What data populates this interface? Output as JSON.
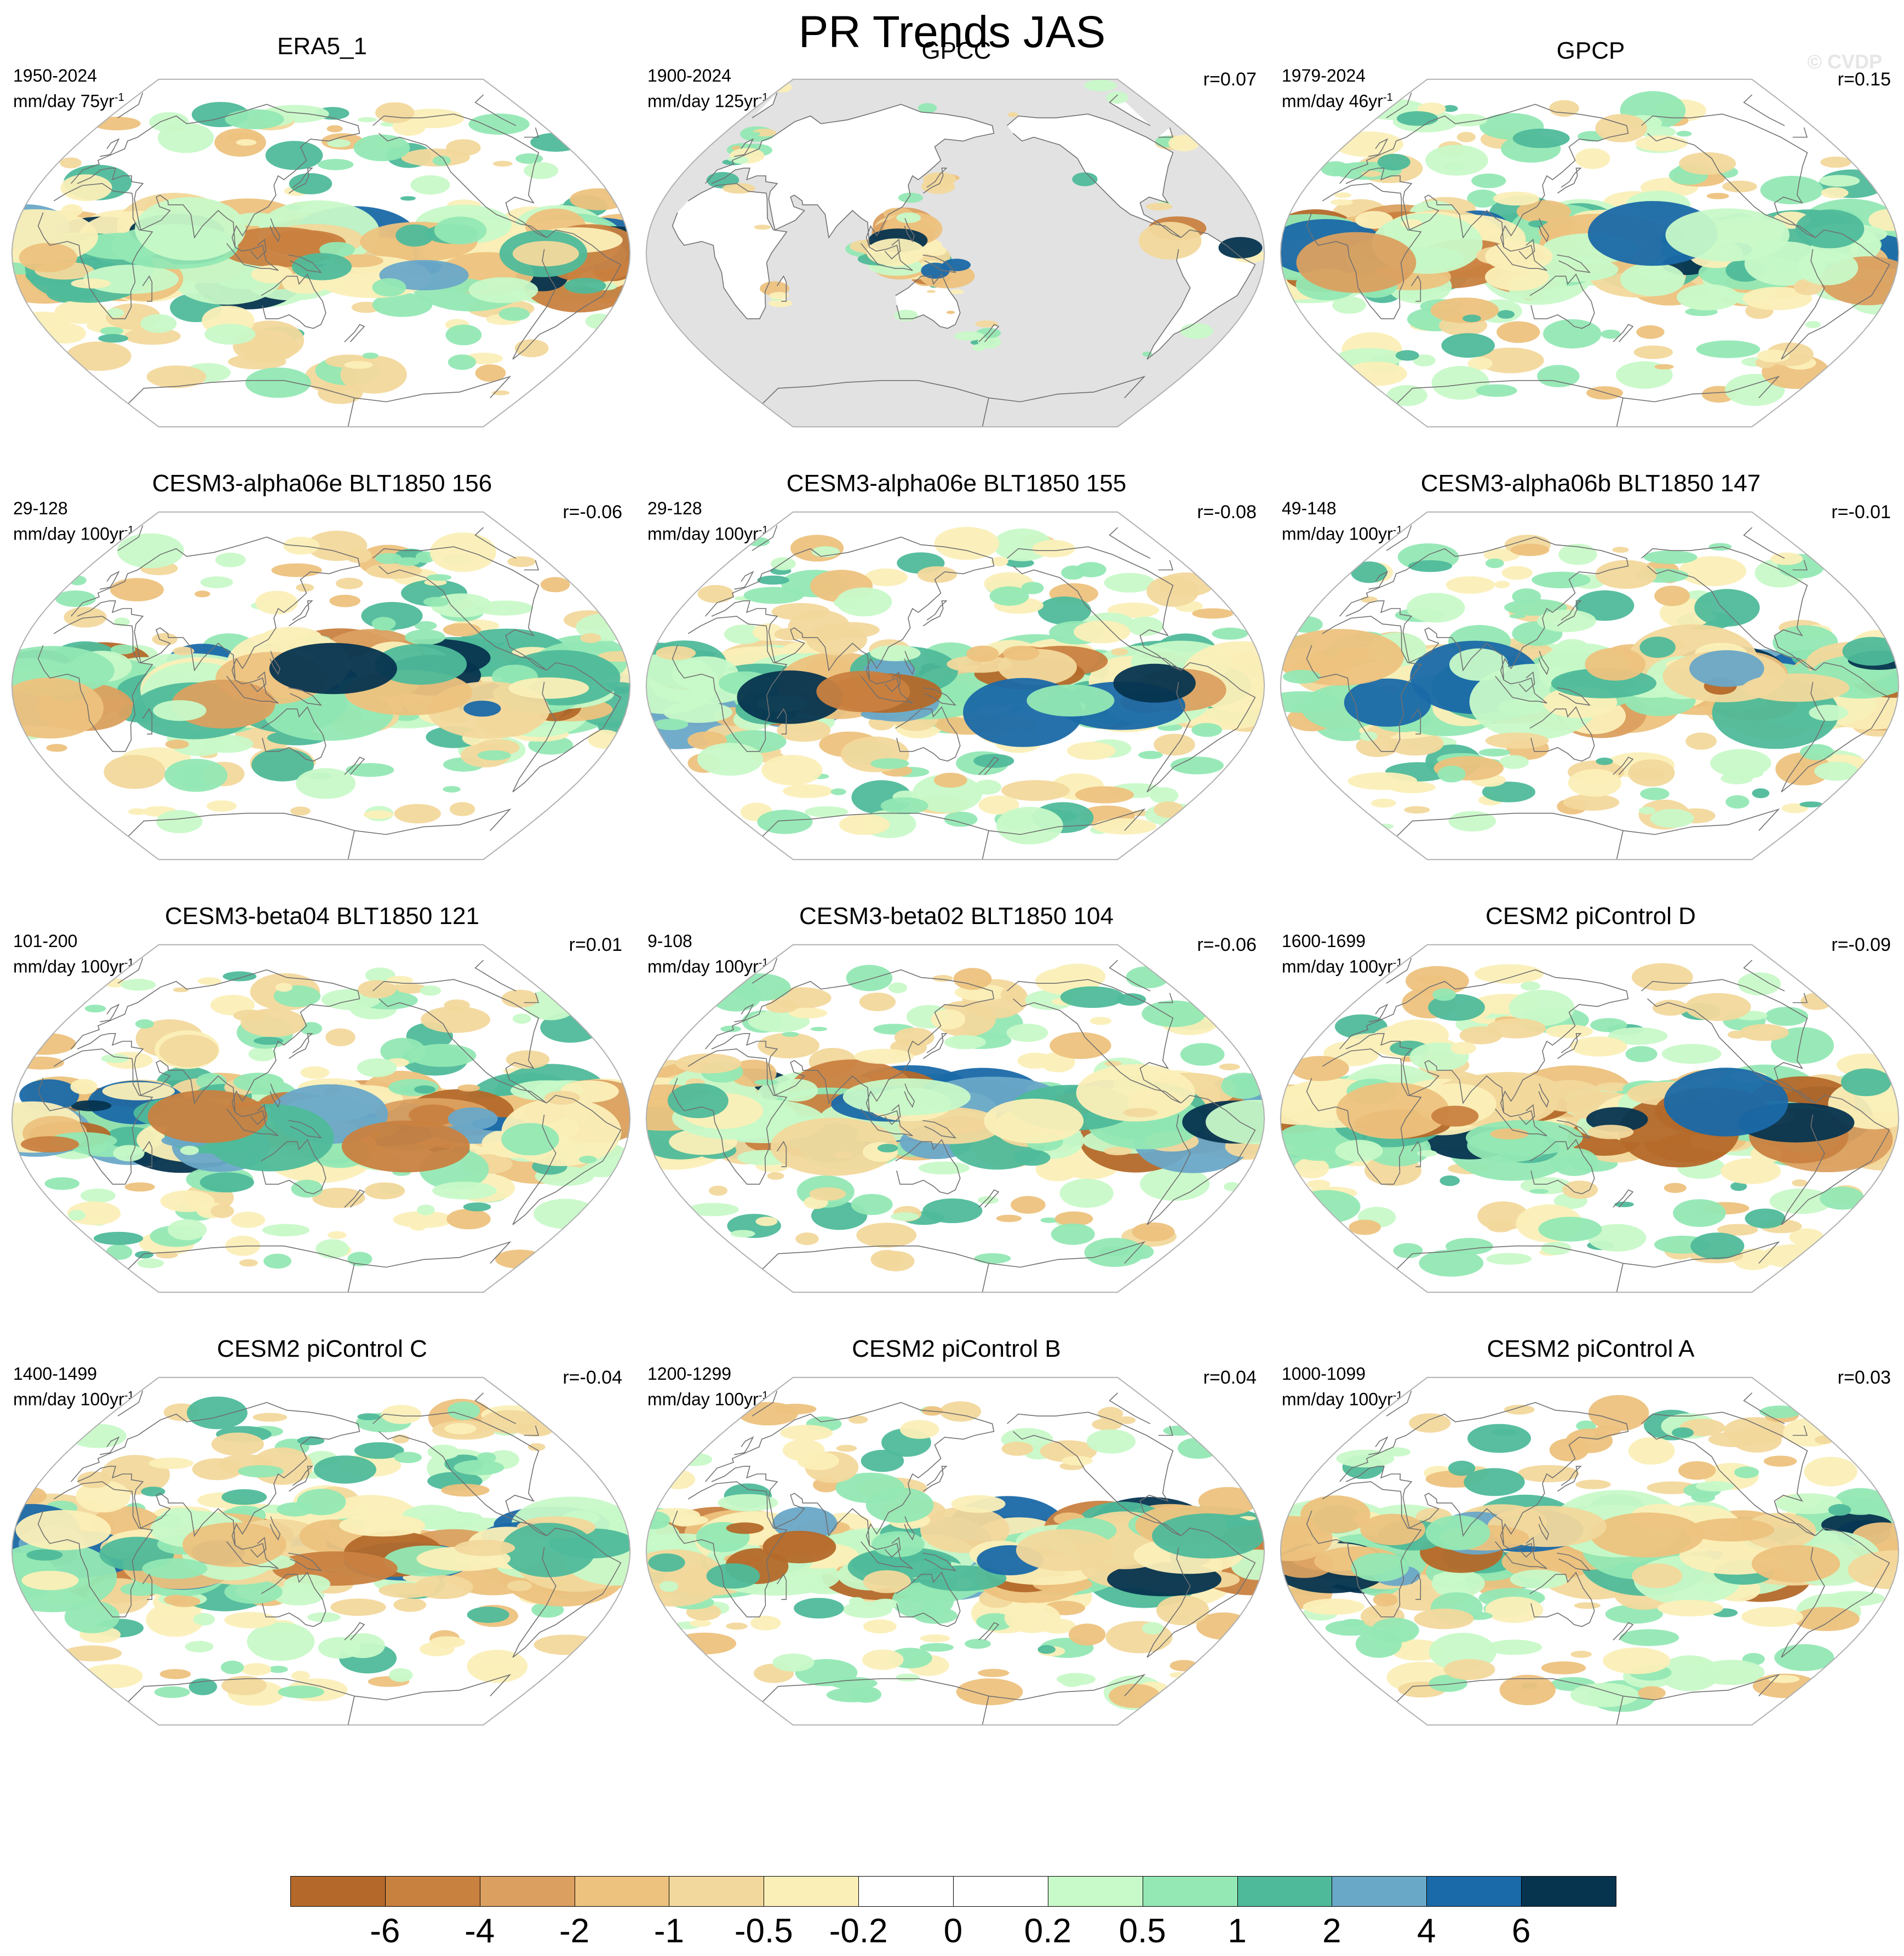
{
  "title": "PR Trends JAS",
  "watermark": "© CVDP",
  "panels": [
    {
      "title": "ERA5_1",
      "period": "1950-2024",
      "units": "mm/day 75yr",
      "corr": ""
    },
    {
      "title": "GPCC",
      "period": "1900-2024",
      "units": "mm/day 125yr",
      "corr": "r=0.07"
    },
    {
      "title": "GPCP",
      "period": "1979-2024",
      "units": "mm/day 46yr",
      "corr": "r=0.15"
    },
    {
      "title": "CESM3-alpha06e BLT1850 156",
      "period": "29-128",
      "units": "mm/day 100yr",
      "corr": "r=-0.06"
    },
    {
      "title": "CESM3-alpha06e BLT1850 155",
      "period": "29-128",
      "units": "mm/day 100yr",
      "corr": "r=-0.08"
    },
    {
      "title": "CESM3-alpha06b BLT1850 147",
      "period": "49-148",
      "units": "mm/day 100yr",
      "corr": "r=-0.01"
    },
    {
      "title": "CESM3-beta04 BLT1850 121",
      "period": "101-200",
      "units": "mm/day 100yr",
      "corr": "r=0.01"
    },
    {
      "title": "CESM3-beta02 BLT1850 104",
      "period": "9-108",
      "units": "mm/day 100yr",
      "corr": "r=-0.06"
    },
    {
      "title": "CESM2 piControl D",
      "period": "1600-1699",
      "units": "mm/day 100yr",
      "corr": "r=-0.09"
    },
    {
      "title": "CESM2 piControl C",
      "period": "1400-1499",
      "units": "mm/day 100yr",
      "corr": "r=-0.04"
    },
    {
      "title": "CESM2 piControl B",
      "period": "1200-1299",
      "units": "mm/day 100yr",
      "corr": "r=0.04"
    },
    {
      "title": "CESM2 piControl A",
      "period": "1000-1099",
      "units": "mm/day 100yr",
      "corr": "r=0.03"
    }
  ],
  "units_exponent": "-1",
  "colorbar": {
    "tick_labels": [
      "-6",
      "-4",
      "-2",
      "-1",
      "-0.5",
      "-0.2",
      "0",
      "0.2",
      "0.5",
      "1",
      "2",
      "4",
      "6"
    ],
    "colors": [
      "#b4692a",
      "#c98140",
      "#dba060",
      "#edc27e",
      "#f2d89c",
      "#fbefb8",
      "#ffffff",
      "#ffffff",
      "#c8f9c8",
      "#93e8b4",
      "#4fba9a",
      "#6aa8c8",
      "#1a69a8",
      "#06344f"
    ]
  },
  "colors": {
    "land_mask": "#e2e2e2",
    "coast": "#707070",
    "map_border": "#b0b0b0"
  }
}
